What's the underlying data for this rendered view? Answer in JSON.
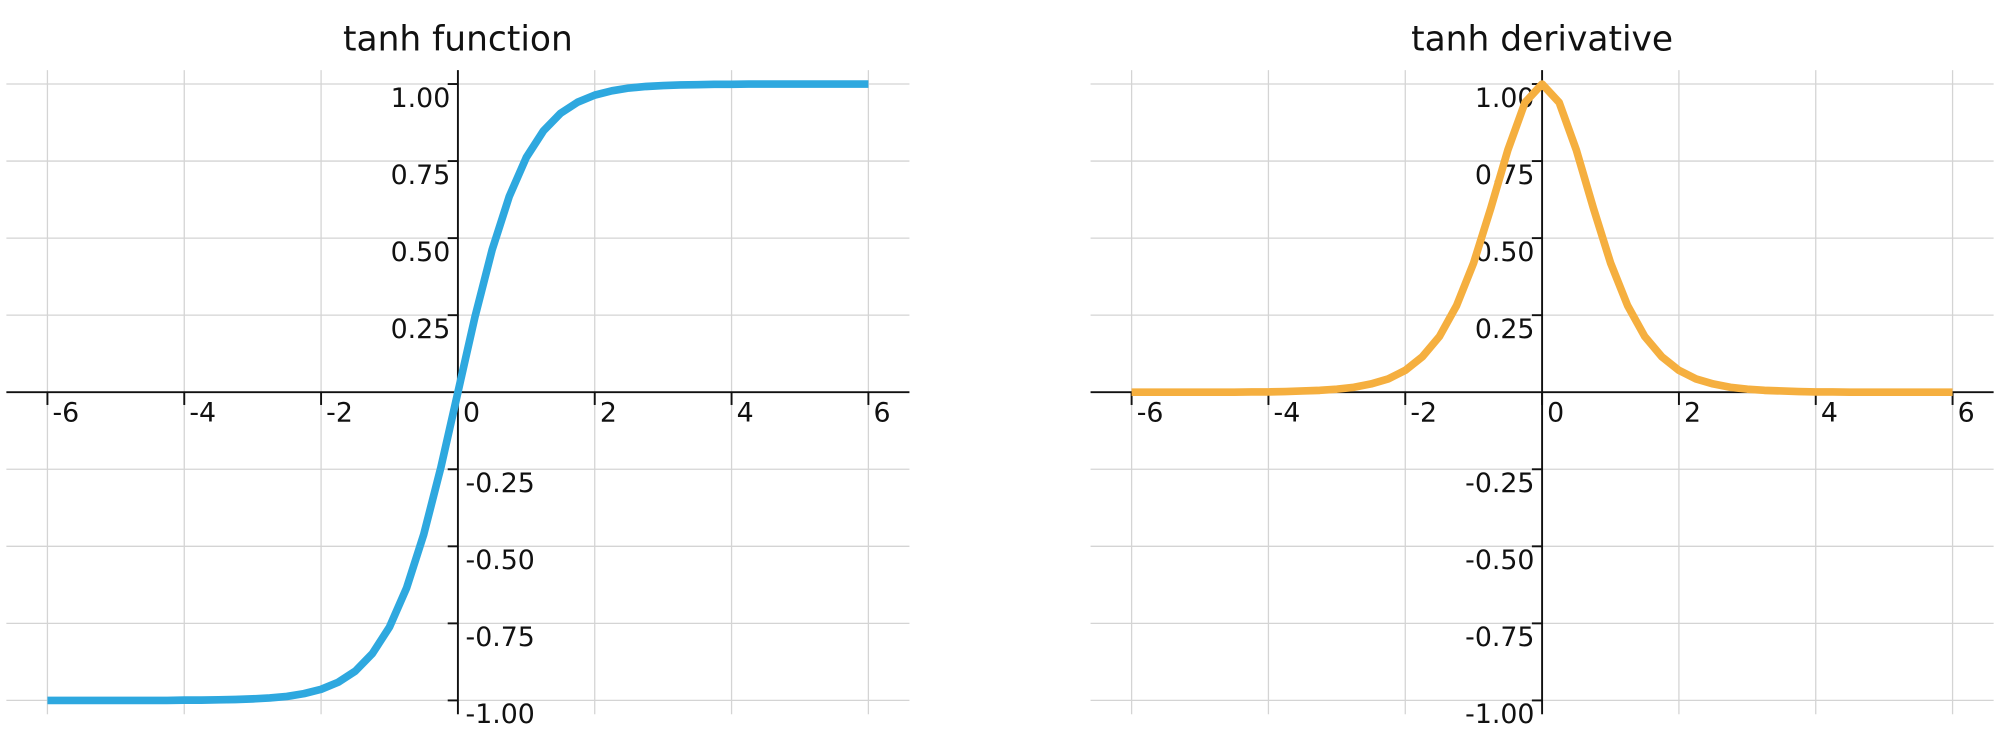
{
  "chart_data": [
    {
      "type": "line",
      "title": "tanh function",
      "color": "#2ea8df",
      "x": [
        -6,
        -5.75,
        -5.5,
        -5.25,
        -5,
        -4.75,
        -4.5,
        -4.25,
        -4,
        -3.75,
        -3.5,
        -3.25,
        -3,
        -2.75,
        -2.5,
        -2.25,
        -2,
        -1.75,
        -1.5,
        -1.25,
        -1,
        -0.75,
        -0.5,
        -0.25,
        0,
        0.25,
        0.5,
        0.75,
        1,
        1.25,
        1.5,
        1.75,
        2,
        2.25,
        2.5,
        2.75,
        3,
        3.25,
        3.5,
        3.75,
        4,
        4.25,
        4.5,
        4.75,
        5,
        5.25,
        5.5,
        5.75,
        6
      ],
      "values": [
        -1,
        -1,
        -1,
        -1,
        -1,
        -1,
        -1,
        -1,
        -0.999,
        -0.999,
        -0.998,
        -0.997,
        -0.995,
        -0.992,
        -0.987,
        -0.978,
        -0.964,
        -0.941,
        -0.905,
        -0.848,
        -0.762,
        -0.635,
        -0.462,
        -0.245,
        0,
        0.245,
        0.462,
        0.635,
        0.762,
        0.848,
        0.905,
        0.941,
        0.964,
        0.978,
        0.987,
        0.992,
        0.995,
        0.997,
        0.998,
        0.999,
        0.999,
        1,
        1,
        1,
        1,
        1,
        1,
        1,
        1
      ],
      "xlim": [
        -6.6,
        6.6
      ],
      "ylim": [
        -1.045,
        1.045
      ],
      "xticks": [
        -6,
        -4,
        -2,
        0,
        2,
        4,
        6
      ],
      "yticks": [
        {
          "value": -1,
          "label": "-1.00"
        },
        {
          "value": -0.75,
          "label": "-0.75"
        },
        {
          "value": -0.5,
          "label": "-0.50"
        },
        {
          "value": -0.25,
          "label": "-0.25"
        },
        0.25,
        {
          "value": 0.5,
          "label": "0.50"
        },
        {
          "value": 0.75,
          "label": "0.75"
        },
        {
          "value": 1,
          "label": "1.00"
        }
      ],
      "grid": true
    },
    {
      "type": "line",
      "title": "tanh derivative",
      "color": "#f5af3f",
      "x": [
        -6,
        -5.75,
        -5.5,
        -5.25,
        -5,
        -4.75,
        -4.5,
        -4.25,
        -4,
        -3.75,
        -3.5,
        -3.25,
        -3,
        -2.75,
        -2.5,
        -2.25,
        -2,
        -1.75,
        -1.5,
        -1.25,
        -1,
        -0.75,
        -0.5,
        -0.25,
        0,
        0.25,
        0.5,
        0.75,
        1,
        1.25,
        1.5,
        1.75,
        2,
        2.25,
        2.5,
        2.75,
        3,
        3.25,
        3.5,
        3.75,
        4,
        4.25,
        4.5,
        4.75,
        5,
        5.25,
        5.5,
        5.75,
        6
      ],
      "values": [
        0,
        0,
        0,
        0,
        0,
        0,
        0,
        0.001,
        0.001,
        0.002,
        0.004,
        0.006,
        0.01,
        0.016,
        0.027,
        0.043,
        0.071,
        0.115,
        0.181,
        0.281,
        0.42,
        0.597,
        0.786,
        0.94,
        1,
        0.94,
        0.786,
        0.597,
        0.42,
        0.281,
        0.181,
        0.115,
        0.071,
        0.043,
        0.027,
        0.016,
        0.01,
        0.006,
        0.004,
        0.002,
        0.001,
        0.001,
        0,
        0,
        0,
        0,
        0,
        0,
        0
      ],
      "xlim": [
        -6.6,
        6.6
      ],
      "ylim": [
        -1.045,
        1.045
      ],
      "xticks": [
        -6,
        -4,
        -2,
        0,
        2,
        4,
        6
      ],
      "yticks": [
        {
          "value": -1,
          "label": "-1.00"
        },
        {
          "value": -0.75,
          "label": "-0.75"
        },
        {
          "value": -0.5,
          "label": "-0.50"
        },
        {
          "value": -0.25,
          "label": "-0.25"
        },
        0.25,
        {
          "value": 0.5,
          "label": "0.50"
        },
        {
          "value": 0.75,
          "label": "0.75"
        },
        {
          "value": 1,
          "label": "1.00"
        }
      ],
      "grid": true
    }
  ]
}
